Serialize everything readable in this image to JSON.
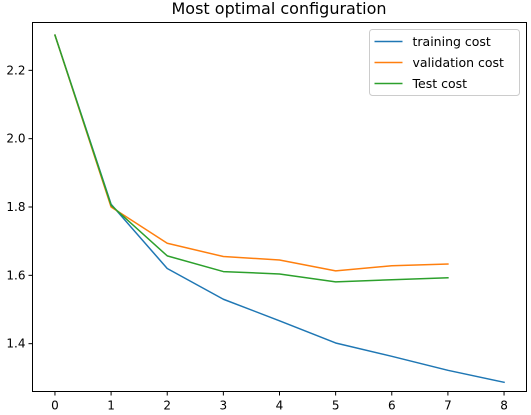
{
  "chart_data": {
    "type": "line",
    "title": "Most optimal configuration",
    "xlabel": "",
    "ylabel": "",
    "xlim": [
      -0.4,
      8.4
    ],
    "ylim": [
      1.26,
      2.34
    ],
    "xticks": [
      0,
      1,
      2,
      3,
      4,
      5,
      6,
      7,
      8
    ],
    "yticks": [
      1.4,
      1.6,
      1.8,
      2.0,
      2.2
    ],
    "grid": false,
    "legend_position": "top-right",
    "series": [
      {
        "name": "training cost",
        "color": "#1f77b4",
        "x": [
          0,
          1,
          2,
          3,
          4,
          5,
          6,
          7,
          8
        ],
        "y": [
          2.303,
          1.808,
          1.62,
          1.53,
          1.467,
          1.402,
          1.363,
          1.322,
          1.287
        ]
      },
      {
        "name": "validation cost",
        "color": "#ff7f0e",
        "x": [
          0,
          1,
          2,
          3,
          4,
          5,
          6,
          7
        ],
        "y": [
          2.303,
          1.8,
          1.694,
          1.655,
          1.645,
          1.613,
          1.628,
          1.633
        ]
      },
      {
        "name": "Test cost",
        "color": "#2ca02c",
        "x": [
          0,
          1,
          2,
          3,
          4,
          5,
          6,
          7
        ],
        "y": [
          2.303,
          1.805,
          1.657,
          1.611,
          1.604,
          1.581,
          1.587,
          1.593
        ]
      }
    ]
  }
}
